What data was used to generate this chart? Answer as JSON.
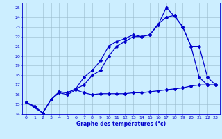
{
  "title": "Graphe des températures (°c)",
  "bg_color": "#cceeff",
  "line_color": "#0000cc",
  "grid_color": "#99bbcc",
  "xlim": [
    -0.5,
    23.5
  ],
  "ylim": [
    14,
    25.5
  ],
  "yticks": [
    14,
    15,
    16,
    17,
    18,
    19,
    20,
    21,
    22,
    23,
    24,
    25
  ],
  "xticks": [
    0,
    1,
    2,
    3,
    4,
    5,
    6,
    7,
    8,
    9,
    10,
    11,
    12,
    13,
    14,
    15,
    16,
    17,
    18,
    19,
    20,
    21,
    22,
    23
  ],
  "line1_x": [
    0,
    1,
    2,
    3,
    4,
    5,
    6,
    7,
    8,
    9,
    10,
    11,
    12,
    13,
    14,
    15,
    16,
    17,
    18,
    19,
    20,
    21,
    22,
    23
  ],
  "line1_y": [
    15.2,
    14.8,
    14.1,
    15.5,
    16.2,
    16.0,
    16.5,
    16.2,
    16.0,
    16.1,
    16.1,
    16.1,
    16.1,
    16.2,
    16.2,
    16.3,
    16.4,
    16.5,
    16.6,
    16.7,
    16.9,
    17.0,
    17.0,
    17.0
  ],
  "line2_x": [
    0,
    1,
    2,
    3,
    4,
    5,
    6,
    7,
    8,
    9,
    10,
    11,
    12,
    13,
    14,
    15,
    16,
    17,
    18,
    19,
    20,
    21,
    22,
    23
  ],
  "line2_y": [
    15.2,
    14.8,
    14.1,
    15.5,
    16.3,
    16.2,
    16.6,
    17.8,
    18.5,
    19.5,
    21.0,
    21.5,
    21.8,
    22.2,
    22.0,
    22.2,
    23.2,
    25.0,
    24.1,
    23.0,
    21.0,
    17.8,
    17.0,
    17.0
  ],
  "line3_x": [
    0,
    2,
    3,
    4,
    5,
    6,
    7,
    8,
    9,
    10,
    11,
    12,
    13,
    14,
    15,
    16,
    17,
    18,
    19,
    20,
    21,
    22,
    23
  ],
  "line3_y": [
    15.2,
    14.1,
    15.5,
    16.3,
    16.2,
    16.6,
    17.0,
    18.0,
    18.5,
    20.0,
    21.0,
    21.5,
    22.0,
    22.0,
    22.2,
    23.3,
    24.0,
    24.2,
    23.0,
    21.0,
    21.0,
    17.8,
    17.0
  ]
}
